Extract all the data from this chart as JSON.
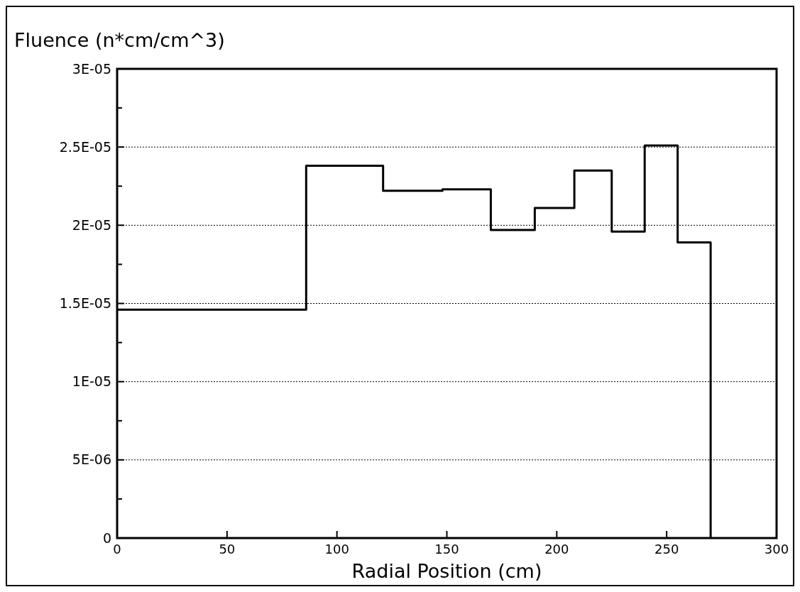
{
  "chart_data": {
    "type": "histogram",
    "ylabel": "Fluence (n*cm/cm^3)",
    "xlabel": "Radial Position (cm)",
    "bins": [
      0,
      86,
      121,
      148,
      170,
      190,
      208,
      225,
      240,
      255,
      270
    ],
    "values": [
      1.46e-05,
      2.38e-05,
      2.22e-05,
      2.23e-05,
      1.97e-05,
      2.11e-05,
      2.35e-05,
      1.96e-05,
      2.51e-05,
      1.89e-05
    ],
    "color": "#000000",
    "xlim": [
      0,
      300
    ],
    "xticks": [
      0,
      50,
      100,
      150,
      200,
      250,
      300
    ],
    "ylim": [
      0,
      3e-05
    ],
    "yticks": [
      {
        "value": 0,
        "label": "0"
      },
      {
        "value": 5e-06,
        "label": "5E-06"
      },
      {
        "value": 1e-05,
        "label": "1E-05"
      },
      {
        "value": 1.5e-05,
        "label": "1.5E-05"
      },
      {
        "value": 2e-05,
        "label": "2E-05"
      },
      {
        "value": 2.5e-05,
        "label": "2.5E-05"
      },
      {
        "value": 3e-05,
        "label": "3E-05"
      }
    ],
    "grid": "y"
  }
}
